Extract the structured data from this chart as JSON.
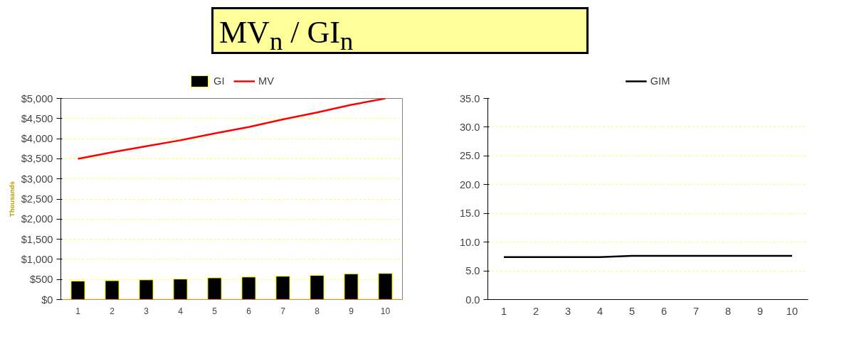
{
  "chart_data": [
    {
      "type": "bar",
      "title": "MV$_{n}$ / GI$_{n}$",
      "ylabel": "Thousands",
      "categories": [
        "1",
        "2",
        "3",
        "4",
        "5",
        "6",
        "7",
        "8",
        "9",
        "10"
      ],
      "series": [
        {
          "name": "GI",
          "type": "bar",
          "color": "#000000",
          "values": [
            460,
            470,
            490,
            510,
            540,
            560,
            580,
            600,
            640,
            650
          ]
        },
        {
          "name": "MV",
          "type": "line",
          "color": "#ff0000",
          "values": [
            3500,
            3660,
            3810,
            3960,
            4130,
            4290,
            4480,
            4650,
            4840,
            5000
          ]
        }
      ],
      "ylim": [
        0,
        5000
      ],
      "yticks": [
        {
          "value": 0,
          "label": "$0"
        },
        {
          "value": 500,
          "label": "$500"
        },
        {
          "value": 1000,
          "label": "$1,000"
        },
        {
          "value": 1500,
          "label": "$1,500"
        },
        {
          "value": 2000,
          "label": "$2,000"
        },
        {
          "value": 2500,
          "label": "$2,500"
        },
        {
          "value": 3000,
          "label": "$3,000"
        },
        {
          "value": 3500,
          "label": "$3,500"
        },
        {
          "value": 4000,
          "label": "$4,000"
        },
        {
          "value": 4500,
          "label": "$4,500"
        },
        {
          "value": 5000,
          "label": "$5,000"
        }
      ],
      "grid": "y",
      "legend": "top"
    },
    {
      "type": "line",
      "categories": [
        "1",
        "2",
        "3",
        "4",
        "5",
        "6",
        "7",
        "8",
        "9",
        "10"
      ],
      "series": [
        {
          "name": "GIM",
          "color": "#000000",
          "values": [
            7.4,
            7.4,
            7.4,
            7.4,
            7.6,
            7.6,
            7.6,
            7.6,
            7.6,
            7.6
          ]
        }
      ],
      "ylim": [
        0,
        35
      ],
      "yticks": [
        {
          "value": 0,
          "label": "0.0"
        },
        {
          "value": 5,
          "label": "5.0"
        },
        {
          "value": 10,
          "label": "10.0"
        },
        {
          "value": 15,
          "label": "15.0"
        },
        {
          "value": 20,
          "label": "20.0"
        },
        {
          "value": 25,
          "label": "25.0"
        },
        {
          "value": 30,
          "label": "30.0"
        },
        {
          "value": 35,
          "label": "35.0"
        }
      ],
      "grid": "y",
      "legend": "top"
    }
  ]
}
